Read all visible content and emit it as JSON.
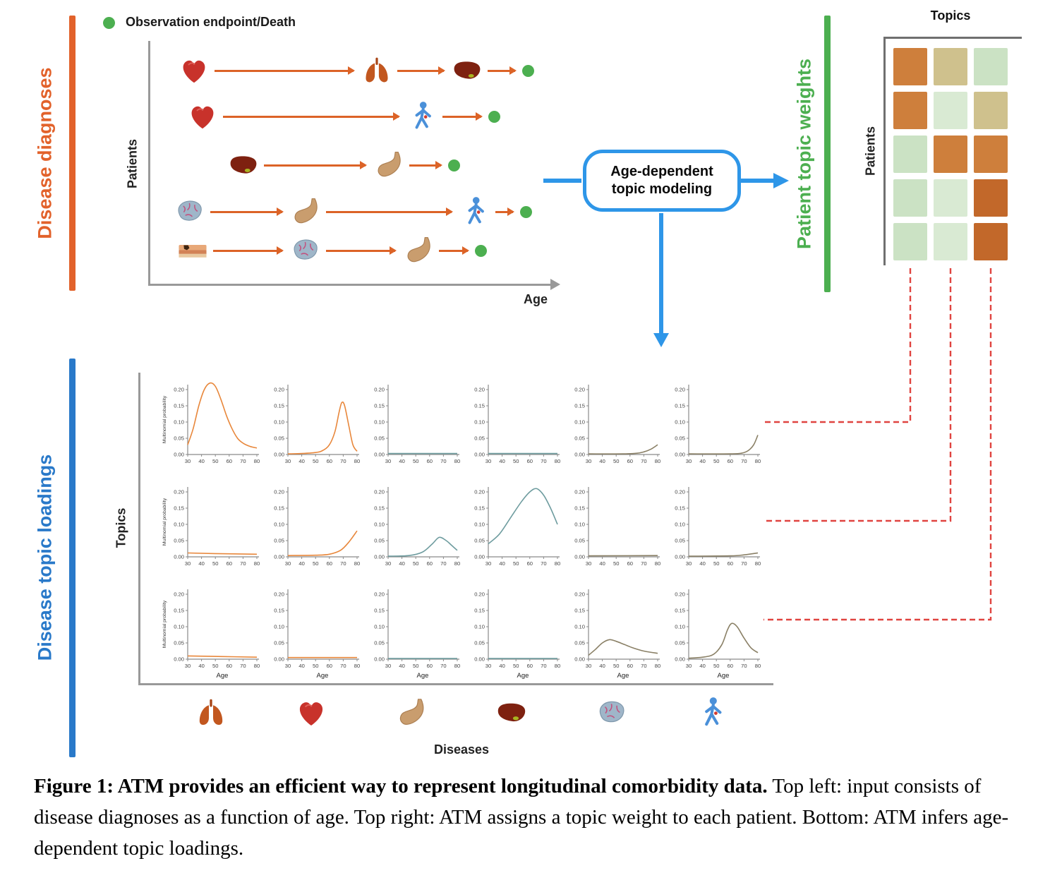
{
  "figure": {
    "legend": {
      "label": "Observation endpoint/Death"
    },
    "sections": {
      "diagnoses_label": "Disease diagnoses",
      "topic_weights_label": "Patient topic weights",
      "topic_loadings_label": "Disease topic loadings"
    },
    "atm_box": {
      "label": "Age-dependent topic modeling"
    },
    "input_panel": {
      "ylabel": "Patients",
      "xlabel": "Age",
      "endpoint_icon": "green-dot",
      "rows": [
        {
          "icons": [
            "heart",
            "lungs",
            "liver"
          ]
        },
        {
          "icons": [
            "heart",
            "person"
          ]
        },
        {
          "icons": [
            "liver",
            "stomach"
          ]
        },
        {
          "icons": [
            "brain",
            "stomach",
            "person"
          ]
        },
        {
          "icons": [
            "skin",
            "brain",
            "stomach"
          ]
        }
      ]
    },
    "topic_weights": {
      "col_title": "Topics",
      "row_title": "Patients",
      "palette": {
        "orange": "#CE7F3C",
        "orange_dark": "#C2682A",
        "tan": "#CFC18D",
        "green": "#CBE2C4",
        "green_light": "#D9EAD3"
      },
      "grid": [
        [
          "orange",
          "tan",
          "green"
        ],
        [
          "orange",
          "green_light",
          "tan"
        ],
        [
          "green",
          "orange",
          "orange"
        ],
        [
          "green",
          "green_light",
          "orange_dark"
        ],
        [
          "green",
          "green_light",
          "orange_dark"
        ]
      ]
    },
    "caption": {
      "bold": "Figure 1: ATM provides an efficient way to represent longitudinal comorbidity data.",
      "rest": " Top left: input consists of disease diagnoses as a function of age. Top right: ATM assigns a topic weight to each patient. Bottom: ATM infers age-dependent topic loadings."
    }
  },
  "chart_data": {
    "type": "line",
    "title": "Disease topic loadings",
    "rows_label": "Topics",
    "cols_label": "Diseases",
    "xlabel": "Age",
    "ylabel": "Multinomial probability",
    "xlim": [
      30,
      80
    ],
    "ylim": [
      0,
      0.2
    ],
    "x_ticks": [
      30,
      40,
      50,
      60,
      70,
      80
    ],
    "y_ticks": [
      0,
      0.05,
      0.1,
      0.15,
      0.2
    ],
    "grid_rows": 3,
    "grid_cols": 6,
    "diseases": [
      "lungs",
      "heart",
      "stomach",
      "liver",
      "brain",
      "person"
    ],
    "colors": {
      "orange": "#E8873B",
      "teal": "#6E9C9F",
      "brown": "#8A8066"
    },
    "grid": [
      [
        {
          "c": "orange",
          "pts": [
            [
              30,
              0.03
            ],
            [
              34,
              0.08
            ],
            [
              38,
              0.15
            ],
            [
              42,
              0.2
            ],
            [
              46,
              0.22
            ],
            [
              50,
              0.21
            ],
            [
              54,
              0.17
            ],
            [
              58,
              0.12
            ],
            [
              62,
              0.08
            ],
            [
              66,
              0.05
            ],
            [
              70,
              0.035
            ],
            [
              75,
              0.025
            ],
            [
              80,
              0.02
            ]
          ]
        },
        {
          "c": "orange",
          "pts": [
            [
              30,
              0.002
            ],
            [
              40,
              0.003
            ],
            [
              50,
              0.006
            ],
            [
              55,
              0.012
            ],
            [
              60,
              0.03
            ],
            [
              64,
              0.07
            ],
            [
              67,
              0.13
            ],
            [
              69,
              0.16
            ],
            [
              71,
              0.15
            ],
            [
              74,
              0.09
            ],
            [
              77,
              0.03
            ],
            [
              80,
              0.01
            ]
          ]
        },
        {
          "c": "teal",
          "pts": [
            [
              30,
              0.003
            ],
            [
              80,
              0.003
            ]
          ]
        },
        {
          "c": "teal",
          "pts": [
            [
              30,
              0.003
            ],
            [
              80,
              0.003
            ]
          ]
        },
        {
          "c": "brown",
          "pts": [
            [
              30,
              0.002
            ],
            [
              55,
              0.002
            ],
            [
              65,
              0.004
            ],
            [
              70,
              0.008
            ],
            [
              75,
              0.016
            ],
            [
              80,
              0.03
            ]
          ]
        },
        {
          "c": "brown",
          "pts": [
            [
              30,
              0.002
            ],
            [
              60,
              0.002
            ],
            [
              68,
              0.004
            ],
            [
              73,
              0.012
            ],
            [
              77,
              0.03
            ],
            [
              80,
              0.06
            ]
          ]
        }
      ],
      [
        {
          "c": "orange",
          "pts": [
            [
              30,
              0.012
            ],
            [
              50,
              0.01
            ],
            [
              80,
              0.008
            ]
          ]
        },
        {
          "c": "orange",
          "pts": [
            [
              30,
              0.004
            ],
            [
              50,
              0.005
            ],
            [
              60,
              0.008
            ],
            [
              68,
              0.02
            ],
            [
              74,
              0.045
            ],
            [
              80,
              0.08
            ]
          ]
        },
        {
          "c": "teal",
          "pts": [
            [
              30,
              0.002
            ],
            [
              45,
              0.004
            ],
            [
              55,
              0.015
            ],
            [
              62,
              0.04
            ],
            [
              67,
              0.06
            ],
            [
              72,
              0.05
            ],
            [
              76,
              0.035
            ],
            [
              80,
              0.02
            ]
          ]
        },
        {
          "c": "teal",
          "pts": [
            [
              30,
              0.04
            ],
            [
              38,
              0.07
            ],
            [
              46,
              0.12
            ],
            [
              54,
              0.17
            ],
            [
              60,
              0.2
            ],
            [
              65,
              0.21
            ],
            [
              70,
              0.19
            ],
            [
              75,
              0.15
            ],
            [
              80,
              0.1
            ]
          ]
        },
        {
          "c": "brown",
          "pts": [
            [
              30,
              0.003
            ],
            [
              80,
              0.004
            ]
          ]
        },
        {
          "c": "brown",
          "pts": [
            [
              30,
              0.002
            ],
            [
              60,
              0.003
            ],
            [
              70,
              0.006
            ],
            [
              80,
              0.012
            ]
          ]
        }
      ],
      [
        {
          "c": "orange",
          "pts": [
            [
              30,
              0.01
            ],
            [
              55,
              0.008
            ],
            [
              80,
              0.006
            ]
          ]
        },
        {
          "c": "orange",
          "pts": [
            [
              30,
              0.005
            ],
            [
              80,
              0.005
            ]
          ]
        },
        {
          "c": "teal",
          "pts": [
            [
              30,
              0.002
            ],
            [
              80,
              0.002
            ]
          ]
        },
        {
          "c": "teal",
          "pts": [
            [
              30,
              0.002
            ],
            [
              80,
              0.002
            ]
          ]
        },
        {
          "c": "brown",
          "pts": [
            [
              30,
              0.012
            ],
            [
              35,
              0.03
            ],
            [
              40,
              0.05
            ],
            [
              45,
              0.06
            ],
            [
              50,
              0.055
            ],
            [
              56,
              0.045
            ],
            [
              62,
              0.035
            ],
            [
              70,
              0.025
            ],
            [
              80,
              0.018
            ]
          ]
        },
        {
          "c": "brown",
          "pts": [
            [
              30,
              0.003
            ],
            [
              40,
              0.006
            ],
            [
              48,
              0.015
            ],
            [
              54,
              0.045
            ],
            [
              58,
              0.09
            ],
            [
              61,
              0.11
            ],
            [
              65,
              0.1
            ],
            [
              70,
              0.065
            ],
            [
              75,
              0.035
            ],
            [
              80,
              0.02
            ]
          ]
        }
      ]
    ]
  }
}
